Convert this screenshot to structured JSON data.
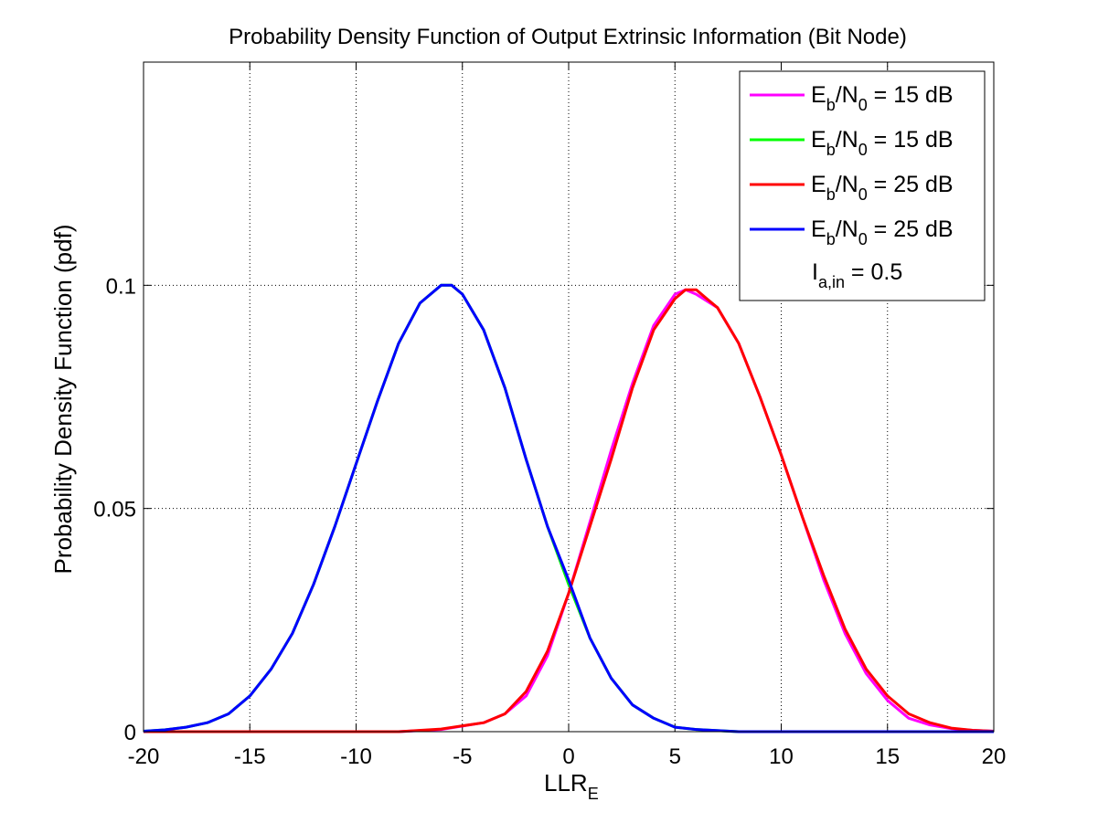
{
  "chart_data": {
    "type": "line",
    "title": "Probability Density Function of Output Extrinsic Information (Bit Node)",
    "xlabel": {
      "main": "LLR",
      "sub": "E"
    },
    "ylabel": "Probability Density Function (pdf)",
    "xlim": [
      -20,
      20
    ],
    "ylim": [
      0,
      0.15
    ],
    "xticks": [
      -20,
      -15,
      -10,
      -5,
      0,
      5,
      10,
      15,
      20
    ],
    "xtick_labels": [
      "-20",
      "-15",
      "-10",
      "-5",
      "0",
      "5",
      "10",
      "15",
      "20"
    ],
    "yticks": [
      0,
      0.05,
      0.1
    ],
    "ytick_labels": [
      "0",
      "0.05",
      "0.1"
    ],
    "grid": true,
    "legend_position": "top-right",
    "legend": [
      {
        "pre": "E",
        "sub1": "b",
        "mid": "/N",
        "sub2": "0",
        "post": " = 15 dB",
        "color": "#ff00ff"
      },
      {
        "pre": "E",
        "sub1": "b",
        "mid": "/N",
        "sub2": "0",
        "post": " = 15 dB",
        "color": "#00ff00"
      },
      {
        "pre": "E",
        "sub1": "b",
        "mid": "/N",
        "sub2": "0",
        "post": " = 25 dB",
        "color": "#ff0000"
      },
      {
        "pre": "E",
        "sub1": "b",
        "mid": "/N",
        "sub2": "0",
        "post": " = 25 dB",
        "color": "#0000ff"
      }
    ],
    "legend_note": {
      "pre": "I",
      "sub": "a,in",
      "post": " = 0.5"
    },
    "series": [
      {
        "color": "#ff00ff",
        "x": [
          -20,
          -18,
          -16,
          -14,
          -12,
          -10,
          -8,
          -6,
          -4,
          -3,
          -2,
          -1,
          0,
          1,
          2,
          3,
          4,
          5,
          5.5,
          6,
          7,
          8,
          9,
          10,
          11,
          12,
          13,
          14,
          15,
          16,
          17,
          18,
          19,
          20
        ],
        "y": [
          0,
          0,
          0,
          0,
          0,
          0,
          0,
          0.0005,
          0.002,
          0.004,
          0.008,
          0.017,
          0.031,
          0.047,
          0.063,
          0.078,
          0.091,
          0.098,
          0.099,
          0.098,
          0.095,
          0.087,
          0.075,
          0.062,
          0.048,
          0.034,
          0.022,
          0.013,
          0.007,
          0.003,
          0.0015,
          0.0007,
          0.0003,
          0.0001
        ]
      },
      {
        "color": "#00ff00",
        "x": [
          -20,
          -19,
          -18,
          -17,
          -16,
          -15,
          -14,
          -13,
          -12,
          -11,
          -10,
          -9,
          -8,
          -7,
          -6,
          -5.5,
          -5,
          -4,
          -3,
          -2,
          -1,
          0,
          1,
          2,
          3,
          4,
          5,
          6,
          8,
          10,
          20
        ],
        "y": [
          0.0001,
          0.0004,
          0.001,
          0.002,
          0.004,
          0.008,
          0.014,
          0.022,
          0.033,
          0.046,
          0.06,
          0.074,
          0.087,
          0.096,
          0.1,
          0.1,
          0.098,
          0.09,
          0.077,
          0.061,
          0.046,
          0.033,
          0.021,
          0.012,
          0.006,
          0.003,
          0.001,
          0.0005,
          0,
          0,
          0
        ]
      },
      {
        "color": "#ff0000",
        "x": [
          -20,
          -18,
          -16,
          -14,
          -12,
          -10,
          -8,
          -6,
          -4,
          -3,
          -2,
          -1,
          0,
          1,
          2,
          3,
          4,
          5,
          5.5,
          6,
          6.5,
          7,
          8,
          9,
          10,
          11,
          12,
          13,
          14,
          15,
          16,
          17,
          18,
          19,
          20
        ],
        "y": [
          0,
          0,
          0,
          0,
          0,
          0,
          0,
          0.0006,
          0.002,
          0.004,
          0.009,
          0.018,
          0.031,
          0.046,
          0.061,
          0.077,
          0.09,
          0.097,
          0.099,
          0.099,
          0.097,
          0.095,
          0.087,
          0.075,
          0.062,
          0.048,
          0.035,
          0.023,
          0.014,
          0.008,
          0.004,
          0.002,
          0.0008,
          0.0003,
          0.0001
        ]
      },
      {
        "color": "#0000ff",
        "x": [
          -20,
          -19,
          -18,
          -17,
          -16,
          -15,
          -14,
          -13,
          -12,
          -11,
          -10,
          -9,
          -8,
          -7,
          -6,
          -5.5,
          -5,
          -4,
          -3,
          -2,
          -1,
          0,
          1,
          2,
          3,
          4,
          5,
          6,
          8,
          10,
          20
        ],
        "y": [
          0.0001,
          0.0004,
          0.001,
          0.002,
          0.004,
          0.008,
          0.014,
          0.022,
          0.033,
          0.046,
          0.06,
          0.074,
          0.087,
          0.096,
          0.1,
          0.1,
          0.098,
          0.09,
          0.077,
          0.061,
          0.046,
          0.034,
          0.021,
          0.012,
          0.006,
          0.003,
          0.001,
          0.0005,
          0,
          0,
          0
        ]
      }
    ]
  }
}
